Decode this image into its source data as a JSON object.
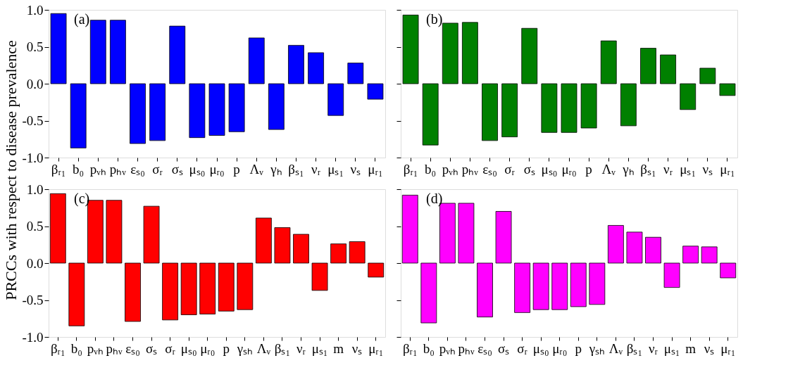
{
  "chart_data": [
    {
      "type": "bar",
      "annotations": [
        "(a)"
      ],
      "ylabel": "PRCCs with respect to disease prevalence",
      "categories": [
        "βᵣ₁",
        "b₀",
        "pᵥₕ",
        "pₕᵥ",
        "εₛ₀",
        "σᵣ",
        "σₛ",
        "μₛ₀",
        "μᵣ₀",
        "p",
        "Λᵥ",
        "γₕ",
        "βₛ₁",
        "νᵣ",
        "μₛ₁",
        "νₛ",
        "μᵣ₁"
      ],
      "values": [
        0.95,
        -0.87,
        0.86,
        0.86,
        -0.81,
        -0.77,
        0.78,
        -0.73,
        -0.7,
        -0.65,
        0.62,
        -0.62,
        0.52,
        0.42,
        -0.43,
        0.28,
        -0.21
      ],
      "color": "#0000ff",
      "ylim": [
        -1,
        1
      ],
      "yticks": [
        {
          "value": -1,
          "label": "-1.0"
        },
        {
          "value": -0.5,
          "label": "-0.5"
        },
        {
          "value": 0,
          "label": "0.0"
        },
        {
          "value": 0.5,
          "label": "0.5"
        },
        {
          "value": 1,
          "label": "1.0"
        }
      ],
      "grid": false
    },
    {
      "type": "bar",
      "annotations": [
        "(b)"
      ],
      "tick_labels": "x",
      "categories": [
        "βᵣ₁",
        "b₀",
        "pᵥₕ",
        "pₕᵥ",
        "εₛ₀",
        "σᵣ",
        "σₛ",
        "μₛ₀",
        "μᵣ₀",
        "p",
        "Λᵥ",
        "γₕ",
        "βₛ₁",
        "νᵣ",
        "μₛ₁",
        "νₛ",
        "μᵣ₁"
      ],
      "values": [
        0.93,
        -0.83,
        0.82,
        0.83,
        -0.77,
        -0.72,
        0.75,
        -0.66,
        -0.66,
        -0.6,
        0.58,
        -0.57,
        0.48,
        0.39,
        -0.35,
        0.21,
        -0.16
      ],
      "color": "#008000",
      "ylim": [
        -1,
        1
      ],
      "yticks": [
        {
          "value": -1,
          "label": null
        },
        {
          "value": -0.5,
          "label": null
        },
        {
          "value": 0,
          "label": null
        },
        {
          "value": 0.5,
          "label": null
        },
        {
          "value": 1,
          "label": null
        }
      ],
      "grid": false
    },
    {
      "type": "bar",
      "annotations": [
        "(c)"
      ],
      "categories": [
        "βᵣ₁",
        "b₀",
        "pᵥₕ",
        "pₕᵥ",
        "εₛ₀",
        "σₛ",
        "σᵣ",
        "μₛ₀",
        "μᵣ₀",
        "p",
        "γₛₕ",
        "Λᵥ",
        "βₛ₁",
        "νᵣ",
        "μₛ₁",
        "m",
        "νₛ",
        "μᵣ₁"
      ],
      "values": [
        0.94,
        -0.85,
        0.85,
        0.85,
        -0.79,
        0.77,
        -0.77,
        -0.7,
        -0.69,
        -0.65,
        -0.63,
        0.61,
        0.48,
        0.39,
        -0.37,
        0.26,
        0.29,
        -0.19
      ],
      "color": "#ff0000",
      "ylim": [
        -1,
        1
      ],
      "yticks": [
        {
          "value": -1,
          "label": "-1.0"
        },
        {
          "value": -0.5,
          "label": "-0.5"
        },
        {
          "value": 0,
          "label": "0.0"
        },
        {
          "value": 0.5,
          "label": "0.5"
        },
        {
          "value": 1,
          "label": "1.0"
        }
      ],
      "grid": false
    },
    {
      "type": "bar",
      "annotations": [
        "(d)"
      ],
      "tick_labels": "x",
      "categories": [
        "βᵣ₁",
        "b₀",
        "pᵥₕ",
        "pₕᵥ",
        "εₛ₀",
        "σₛ",
        "σᵣ",
        "μₛ₀",
        "μᵣ₀",
        "p",
        "γₛₕ",
        "Λᵥ",
        "βₛ₁",
        "νᵣ",
        "μₛ₁",
        "m",
        "νₛ",
        "μᵣ₁"
      ],
      "values": [
        0.92,
        -0.81,
        0.81,
        0.81,
        -0.73,
        0.7,
        -0.67,
        -0.63,
        -0.63,
        -0.59,
        -0.56,
        0.51,
        0.42,
        0.35,
        -0.33,
        0.23,
        0.22,
        -0.2
      ],
      "color": "#ff00ff",
      "ylim": [
        -1,
        1
      ],
      "yticks": [
        {
          "value": -1,
          "label": null
        },
        {
          "value": -0.5,
          "label": null
        },
        {
          "value": 0,
          "label": null
        },
        {
          "value": 0.5,
          "label": null
        },
        {
          "value": 1,
          "label": null
        }
      ],
      "grid": false
    }
  ]
}
